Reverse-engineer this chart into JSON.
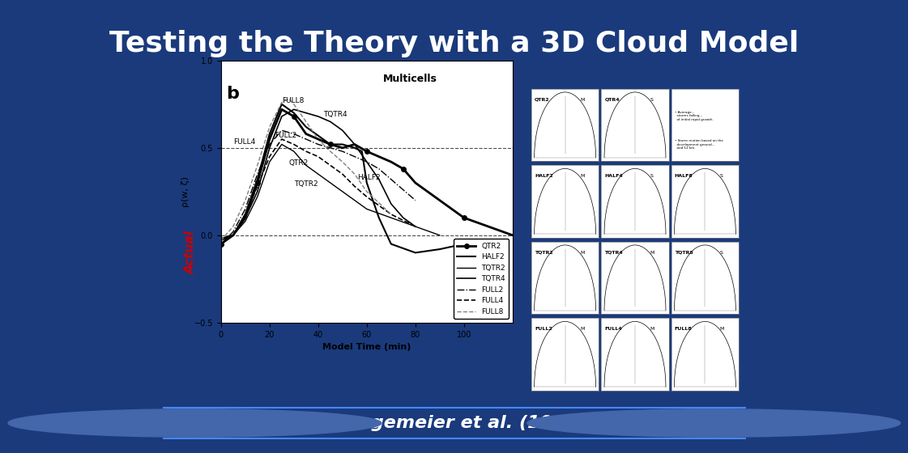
{
  "title": "Testing the Theory with a 3D Cloud Model",
  "title_color": "#ffffff",
  "title_fontsize": 26,
  "background_color": "#1a2a6c",
  "slide_bg": "#1a3a7c",
  "footer_text": "Droegemeier et al. (1993)",
  "footer_color": "#ffffff",
  "footer_bg": "#2255bb",
  "actual_label": "Actual",
  "actual_color": "#cc0000",
  "panel_bg": "#e8e8e8",
  "chart_label": "b",
  "chart_subtitle": "Multicells",
  "ylabel": "ρ(w, ζ)",
  "xlabel": "Model Time (min)",
  "ylim": [
    -0.5,
    1.0
  ],
  "xlim": [
    0,
    120
  ],
  "yticks": [
    -0.5,
    0,
    0.5,
    1.0
  ],
  "xticks": [
    0,
    20,
    40,
    60,
    80,
    100
  ],
  "legend_entries": [
    "QTR2",
    "HALF2",
    "TQTR2",
    "TQTR4",
    "FULL2",
    "FULL4",
    "FULL8"
  ]
}
